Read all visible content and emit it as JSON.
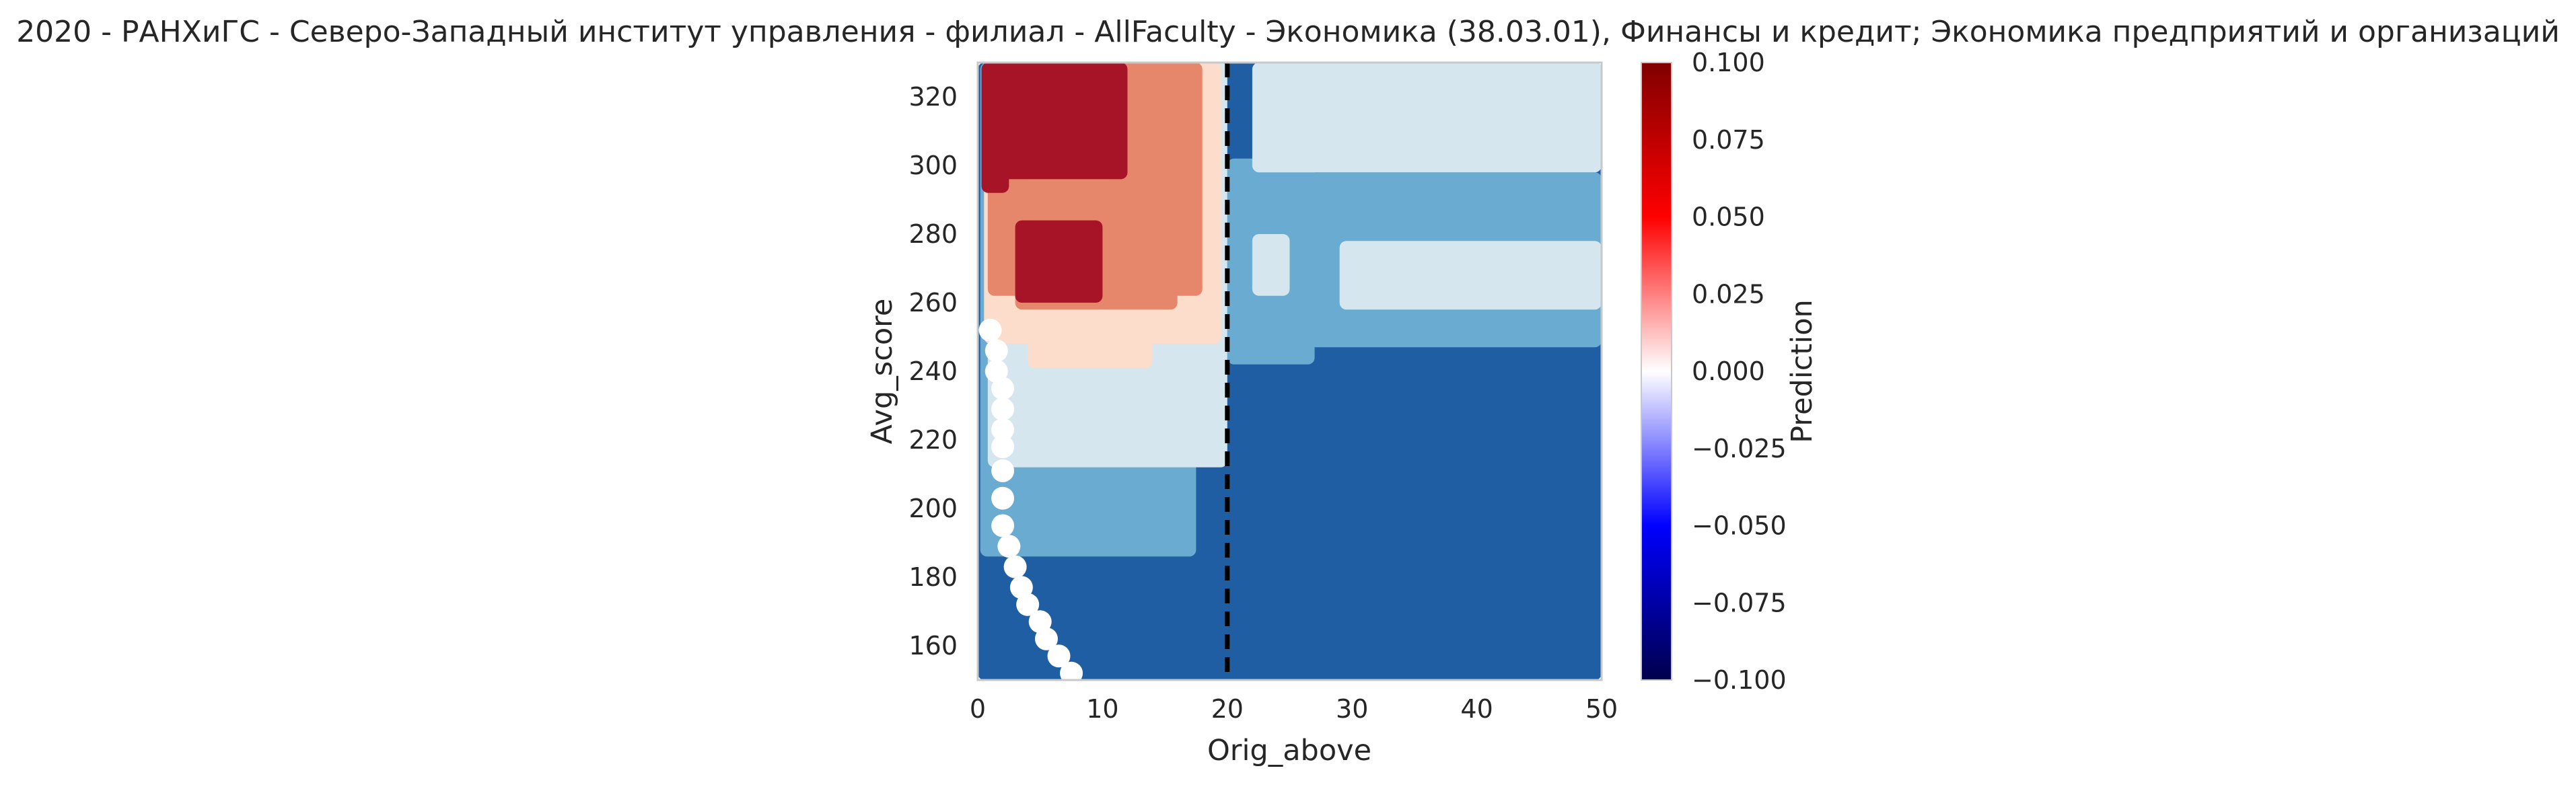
{
  "chart_data": {
    "type": "heatmap",
    "title": "2020 - РАНХиГС - Северо-Западный институт управления - филиал - AllFaculty - Экономика (38.03.01), Финансы и кредит; Экономика предприятий и организаций",
    "xlabel": "Orig_above",
    "ylabel": "Avg_score",
    "colorbar_label": "Prediction",
    "xlim": [
      0,
      50
    ],
    "ylim": [
      150,
      330
    ],
    "xticks": [
      0,
      10,
      20,
      30,
      40,
      50
    ],
    "xtick_labels": [
      "0",
      "10",
      "20",
      "30",
      "40",
      "50"
    ],
    "yticks": [
      160,
      180,
      200,
      220,
      240,
      260,
      280,
      300,
      320
    ],
    "ytick_labels": [
      "160",
      "180",
      "200",
      "220",
      "240",
      "260",
      "280",
      "300",
      "320"
    ],
    "colorbar_range": [
      -0.1,
      0.1
    ],
    "colorbar_ticks": [
      0.1,
      0.075,
      0.05,
      0.025,
      0.0,
      -0.025,
      -0.05,
      -0.075,
      -0.1
    ],
    "colorbar_tick_labels": [
      "0.100",
      "0.075",
      "0.050",
      "0.025",
      "0.000",
      "−0.025",
      "−0.050",
      "−0.075",
      "−0.100"
    ],
    "colormap": "seismic",
    "grid": false,
    "threshold_line": {
      "x": 20,
      "style": "dashed",
      "color": "#000000"
    },
    "levels": {
      "dark_red": "#a71428",
      "salmon": "#e6866b",
      "pale_pink": "#fcdccb",
      "pale_blue": "#d5e6ef",
      "mid_blue": "#6aabd1",
      "dark_blue": "#1f5ea3"
    },
    "regions": [
      {
        "level": "dark_blue",
        "x0": 0,
        "x1": 50,
        "y0": 150,
        "y1": 330
      },
      {
        "level": "mid_blue",
        "x0": 0.2,
        "x1": 17.5,
        "y0": 186,
        "y1": 330
      },
      {
        "level": "mid_blue",
        "x0": 20,
        "x1": 27,
        "y0": 242,
        "y1": 302
      },
      {
        "level": "mid_blue",
        "x0": 26,
        "x1": 50,
        "y0": 247,
        "y1": 298
      },
      {
        "level": "pale_blue",
        "x0": 0.8,
        "x1": 20,
        "y0": 212,
        "y1": 330
      },
      {
        "level": "pale_blue",
        "x0": 22,
        "x1": 50,
        "y0": 298,
        "y1": 330
      },
      {
        "level": "pale_blue",
        "x0": 29,
        "x1": 50,
        "y0": 258,
        "y1": 278
      },
      {
        "level": "pale_blue",
        "x0": 22,
        "x1": 25,
        "y0": 262,
        "y1": 280
      },
      {
        "level": "pale_pink",
        "x0": 0.5,
        "x1": 19.5,
        "y0": 248,
        "y1": 330
      },
      {
        "level": "pale_pink",
        "x0": 4,
        "x1": 14,
        "y0": 241,
        "y1": 250
      },
      {
        "level": "salmon",
        "x0": 0.8,
        "x1": 18,
        "y0": 262,
        "y1": 330
      },
      {
        "level": "salmon",
        "x0": 3,
        "x1": 16,
        "y0": 258,
        "y1": 266
      },
      {
        "level": "dark_red",
        "x0": 0.3,
        "x1": 2.5,
        "y0": 292,
        "y1": 330
      },
      {
        "level": "dark_red",
        "x0": 2,
        "x1": 12,
        "y0": 296,
        "y1": 330
      },
      {
        "level": "dark_red",
        "x0": 3,
        "x1": 10,
        "y0": 260,
        "y1": 284
      }
    ],
    "points": [
      {
        "x": 1,
        "y": 252
      },
      {
        "x": 1.5,
        "y": 246
      },
      {
        "x": 1.5,
        "y": 240
      },
      {
        "x": 2,
        "y": 235
      },
      {
        "x": 2,
        "y": 229
      },
      {
        "x": 2,
        "y": 223
      },
      {
        "x": 2,
        "y": 218
      },
      {
        "x": 2,
        "y": 211
      },
      {
        "x": 2,
        "y": 203
      },
      {
        "x": 2,
        "y": 195
      },
      {
        "x": 2.5,
        "y": 189
      },
      {
        "x": 3,
        "y": 183
      },
      {
        "x": 3.5,
        "y": 177
      },
      {
        "x": 4,
        "y": 172
      },
      {
        "x": 5,
        "y": 167
      },
      {
        "x": 5.5,
        "y": 162
      },
      {
        "x": 6.5,
        "y": 157
      },
      {
        "x": 7.5,
        "y": 152
      }
    ]
  }
}
